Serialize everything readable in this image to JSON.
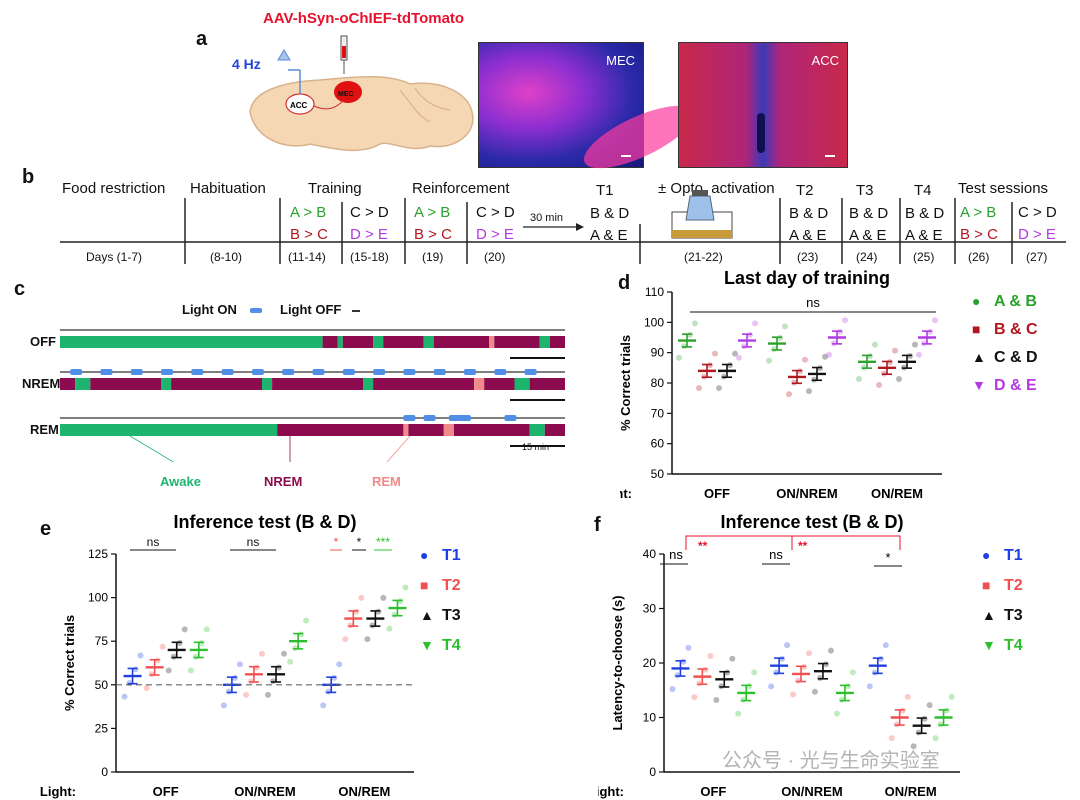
{
  "panel_letters": {
    "a": "a",
    "b": "b",
    "c": "c",
    "d": "d",
    "e": "e",
    "f": "f"
  },
  "panel_a": {
    "virus": "AAV-hSyn-oChIEF-tdTomato",
    "stim": "4 Hz",
    "acc_label": "ACC",
    "mec_label": "MEC",
    "image1_label": "MEC",
    "image2_label": "ACC"
  },
  "panel_b": {
    "headers": [
      "Food restriction",
      "Habituation",
      "Training",
      "Reinforcement",
      "T1",
      "± Opto. activation",
      "T2",
      "T3",
      "T4",
      "Test sessions"
    ],
    "days": [
      "Days (1-7)",
      "(8-10)",
      "(11-14)",
      "(15-18)",
      "(19)",
      "(20)",
      "(21-22)",
      "(23)",
      "(24)",
      "(25)",
      "(26)",
      "(27)"
    ],
    "pairs_AB": "A > B",
    "pairs_BC": "B > C",
    "pairs_CD": "C > D",
    "pairs_DE": "D > E",
    "t_BD": "B & D",
    "t_AE": "A & E",
    "arrow_label": "30 min"
  },
  "panel_c": {
    "legend_on": "Light ON",
    "legend_off": "Light OFF",
    "rows": [
      "OFF",
      "NREM",
      "REM"
    ],
    "scale": "15 min",
    "states": [
      "Awake",
      "NREM",
      "REM"
    ],
    "colors": {
      "awake": "#1db46e",
      "nrem": "#8c0b4e",
      "rem": "#f08a8a",
      "light": "#4f8fe6"
    }
  },
  "chart_data": [
    {
      "id": "d",
      "type": "scatter",
      "title": "Last day of training",
      "ylabel": "% Correct trials",
      "ylim": [
        50,
        110
      ],
      "yticks": [
        50,
        60,
        70,
        80,
        90,
        100,
        110
      ],
      "categories": [
        "OFF",
        "ON/NREM",
        "ON/REM"
      ],
      "xprefix": "Light:",
      "annotation": "ns",
      "series": [
        {
          "name": "A & B",
          "color": "#2ba02b",
          "values": [
            94,
            93,
            87
          ]
        },
        {
          "name": "B & C",
          "color": "#b0171f",
          "values": [
            84,
            82,
            85
          ]
        },
        {
          "name": "C & D",
          "color": "#111111",
          "values": [
            84,
            83,
            87
          ]
        },
        {
          "name": "D & E",
          "color": "#b23ae0",
          "values": [
            94,
            95,
            95
          ]
        }
      ]
    },
    {
      "id": "e",
      "type": "scatter",
      "title": "Inference test (B & D)",
      "ylabel": "% Correct trials",
      "ylim": [
        0,
        125
      ],
      "yticks": [
        0,
        25,
        50,
        75,
        100,
        125
      ],
      "categories": [
        "OFF",
        "ON/NREM",
        "ON/REM"
      ],
      "xprefix": "Light:",
      "annotations": [
        "ns",
        "ns",
        "*",
        "*",
        "***"
      ],
      "series": [
        {
          "name": "T1",
          "color": "#1f3fe0",
          "values": [
            55,
            50,
            50
          ]
        },
        {
          "name": "T2",
          "color": "#f05050",
          "values": [
            60,
            56,
            88
          ]
        },
        {
          "name": "T3",
          "color": "#111111",
          "values": [
            70,
            56,
            88
          ]
        },
        {
          "name": "T4",
          "color": "#2bc02b",
          "values": [
            70,
            75,
            94
          ]
        }
      ]
    },
    {
      "id": "f",
      "type": "scatter",
      "title": "Inference test (B & D)",
      "ylabel": "Latency-to-choose (s)",
      "ylim": [
        0,
        40
      ],
      "yticks": [
        0,
        10,
        20,
        30,
        40
      ],
      "categories": [
        "OFF",
        "ON/NREM",
        "ON/REM"
      ],
      "xprefix": "Light:",
      "annotations": [
        "ns",
        "ns",
        "*",
        "**",
        "**"
      ],
      "series": [
        {
          "name": "T1",
          "color": "#1f3fe0",
          "values": [
            19,
            19.5,
            19.5
          ]
        },
        {
          "name": "T2",
          "color": "#f05050",
          "values": [
            17.5,
            18,
            10
          ]
        },
        {
          "name": "T3",
          "color": "#111111",
          "values": [
            17,
            18.5,
            8.5
          ]
        },
        {
          "name": "T4",
          "color": "#2bc02b",
          "values": [
            14.5,
            14.5,
            10
          ]
        }
      ]
    }
  ],
  "watermark": "公众号 · 光与生命实验室"
}
